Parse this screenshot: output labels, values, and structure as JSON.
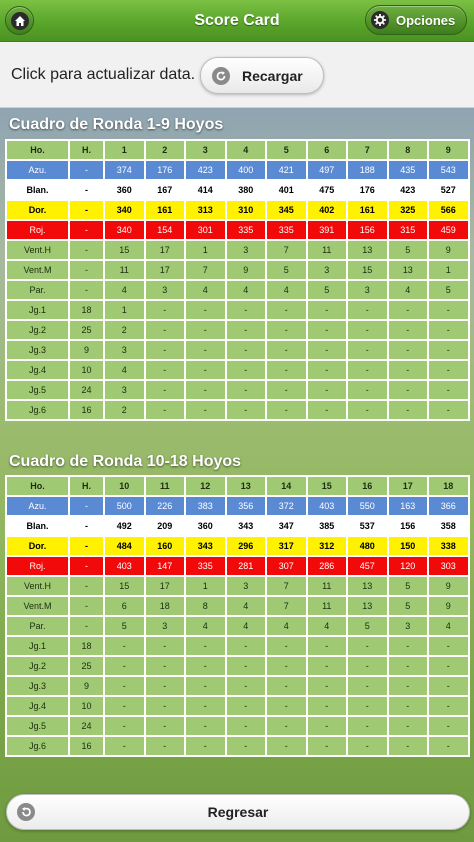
{
  "header": {
    "title": "Score Card",
    "options_label": "Opciones"
  },
  "refresh": {
    "text": "Click para actualizar data.",
    "button_label": "Recargar"
  },
  "sections": [
    {
      "title": "Cuadro de Ronda 1-9 Hoyos",
      "rows": [
        {
          "kind": "hdr",
          "cells": [
            "Ho.",
            "H.",
            "1",
            "2",
            "3",
            "4",
            "5",
            "6",
            "7",
            "8",
            "9"
          ]
        },
        {
          "kind": "azu",
          "cells": [
            "Azu.",
            "-",
            "374",
            "176",
            "423",
            "400",
            "421",
            "497",
            "188",
            "435",
            "543"
          ]
        },
        {
          "kind": "blan",
          "cells": [
            "Blan.",
            "-",
            "360",
            "167",
            "414",
            "380",
            "401",
            "475",
            "176",
            "423",
            "527"
          ]
        },
        {
          "kind": "dor",
          "cells": [
            "Dor.",
            "-",
            "340",
            "161",
            "313",
            "310",
            "345",
            "402",
            "161",
            "325",
            "566"
          ]
        },
        {
          "kind": "roj",
          "cells": [
            "Roj.",
            "-",
            "340",
            "154",
            "301",
            "335",
            "335",
            "391",
            "156",
            "315",
            "459"
          ]
        },
        {
          "kind": "g",
          "cells": [
            "Vent.H",
            "-",
            "15",
            "17",
            "1",
            "3",
            "7",
            "11",
            "13",
            "5",
            "9"
          ]
        },
        {
          "kind": "g",
          "cells": [
            "Vent.M",
            "-",
            "11",
            "17",
            "7",
            "9",
            "5",
            "3",
            "15",
            "13",
            "1"
          ]
        },
        {
          "kind": "g",
          "cells": [
            "Par.",
            "-",
            "4",
            "3",
            "4",
            "4",
            "4",
            "5",
            "3",
            "4",
            "5"
          ]
        },
        {
          "kind": "g",
          "cells": [
            "Jg.1",
            "18",
            "1",
            "-",
            "-",
            "-",
            "-",
            "-",
            "-",
            "-",
            "-"
          ]
        },
        {
          "kind": "g",
          "cells": [
            "Jg.2",
            "25",
            "2",
            "-",
            "-",
            "-",
            "-",
            "-",
            "-",
            "-",
            "-"
          ]
        },
        {
          "kind": "g",
          "cells": [
            "Jg.3",
            "9",
            "3",
            "-",
            "-",
            "-",
            "-",
            "-",
            "-",
            "-",
            "-"
          ]
        },
        {
          "kind": "g",
          "cells": [
            "Jg.4",
            "10",
            "4",
            "-",
            "-",
            "-",
            "-",
            "-",
            "-",
            "-",
            "-"
          ]
        },
        {
          "kind": "g",
          "cells": [
            "Jg.5",
            "24",
            "3",
            "-",
            "-",
            "-",
            "-",
            "-",
            "-",
            "-",
            "-"
          ]
        },
        {
          "kind": "g",
          "cells": [
            "Jg.6",
            "16",
            "2",
            "-",
            "-",
            "-",
            "-",
            "-",
            "-",
            "-",
            "-"
          ]
        }
      ]
    },
    {
      "title": "Cuadro de Ronda 10-18 Hoyos",
      "rows": [
        {
          "kind": "hdr",
          "cells": [
            "Ho.",
            "H.",
            "10",
            "11",
            "12",
            "13",
            "14",
            "15",
            "16",
            "17",
            "18"
          ]
        },
        {
          "kind": "azu",
          "cells": [
            "Azu.",
            "-",
            "500",
            "226",
            "383",
            "356",
            "372",
            "403",
            "550",
            "163",
            "366"
          ]
        },
        {
          "kind": "blan",
          "cells": [
            "Blan.",
            "-",
            "492",
            "209",
            "360",
            "343",
            "347",
            "385",
            "537",
            "156",
            "358"
          ]
        },
        {
          "kind": "dor",
          "cells": [
            "Dor.",
            "-",
            "484",
            "160",
            "343",
            "296",
            "317",
            "312",
            "480",
            "150",
            "338"
          ]
        },
        {
          "kind": "roj",
          "cells": [
            "Roj.",
            "-",
            "403",
            "147",
            "335",
            "281",
            "307",
            "286",
            "457",
            "120",
            "303"
          ]
        },
        {
          "kind": "g",
          "cells": [
            "Vent.H",
            "-",
            "15",
            "17",
            "1",
            "3",
            "7",
            "11",
            "13",
            "5",
            "9"
          ]
        },
        {
          "kind": "g",
          "cells": [
            "Vent.M",
            "-",
            "6",
            "18",
            "8",
            "4",
            "7",
            "11",
            "13",
            "5",
            "9"
          ]
        },
        {
          "kind": "g",
          "cells": [
            "Par.",
            "-",
            "5",
            "3",
            "4",
            "4",
            "4",
            "4",
            "5",
            "3",
            "4"
          ]
        },
        {
          "kind": "g",
          "cells": [
            "Jg.1",
            "18",
            "-",
            "-",
            "-",
            "-",
            "-",
            "-",
            "-",
            "-",
            "-"
          ]
        },
        {
          "kind": "g",
          "cells": [
            "Jg.2",
            "25",
            "-",
            "-",
            "-",
            "-",
            "-",
            "-",
            "-",
            "-",
            "-"
          ]
        },
        {
          "kind": "g",
          "cells": [
            "Jg.3",
            "9",
            "-",
            "-",
            "-",
            "-",
            "-",
            "-",
            "-",
            "-",
            "-"
          ]
        },
        {
          "kind": "g",
          "cells": [
            "Jg.4",
            "10",
            "-",
            "-",
            "-",
            "-",
            "-",
            "-",
            "-",
            "-",
            "-"
          ]
        },
        {
          "kind": "g",
          "cells": [
            "Jg.5",
            "24",
            "-",
            "-",
            "-",
            "-",
            "-",
            "-",
            "-",
            "-",
            "-"
          ]
        },
        {
          "kind": "g",
          "cells": [
            "Jg.6",
            "16",
            "-",
            "-",
            "-",
            "-",
            "-",
            "-",
            "-",
            "-",
            "-"
          ]
        }
      ]
    }
  ],
  "footer": {
    "back_label": "Regresar"
  },
  "colors": {
    "header_green": "#5aa52b",
    "azul": "#5b8ad4",
    "dorado": "#fff100",
    "rojo": "#f20a0a",
    "verde_celda": "#a0c973"
  },
  "icons": {
    "home": "home-icon",
    "options": "gear-icon",
    "reload": "refresh-icon",
    "back": "back-arrow-icon"
  }
}
